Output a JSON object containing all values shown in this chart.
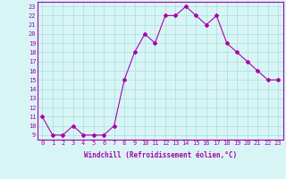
{
  "x": [
    0,
    1,
    2,
    3,
    4,
    5,
    6,
    7,
    8,
    9,
    10,
    11,
    12,
    13,
    14,
    15,
    16,
    17,
    18,
    19,
    20,
    21,
    22,
    23
  ],
  "y": [
    11,
    9,
    9,
    10,
    9,
    9,
    9,
    10,
    15,
    18,
    20,
    19,
    22,
    22,
    23,
    22,
    21,
    22,
    19,
    18,
    17,
    16,
    15,
    15
  ],
  "line_color": "#aa00aa",
  "marker": "D",
  "marker_size": 2.0,
  "bg_color": "#d8f5f5",
  "grid_color": "#aadddd",
  "xlabel": "Windchill (Refroidissement éolien,°C)",
  "xlim": [
    -0.5,
    23.5
  ],
  "ylim": [
    8.5,
    23.5
  ],
  "yticks": [
    9,
    10,
    11,
    12,
    13,
    14,
    15,
    16,
    17,
    18,
    19,
    20,
    21,
    22,
    23
  ],
  "xticks": [
    0,
    1,
    2,
    3,
    4,
    5,
    6,
    7,
    8,
    9,
    10,
    11,
    12,
    13,
    14,
    15,
    16,
    17,
    18,
    19,
    20,
    21,
    22,
    23
  ],
  "tick_color": "#aa00aa",
  "label_color": "#aa00aa",
  "spine_color": "#aa00aa",
  "linewidth": 0.8,
  "tick_fontsize": 5.0,
  "xlabel_fontsize": 5.5
}
